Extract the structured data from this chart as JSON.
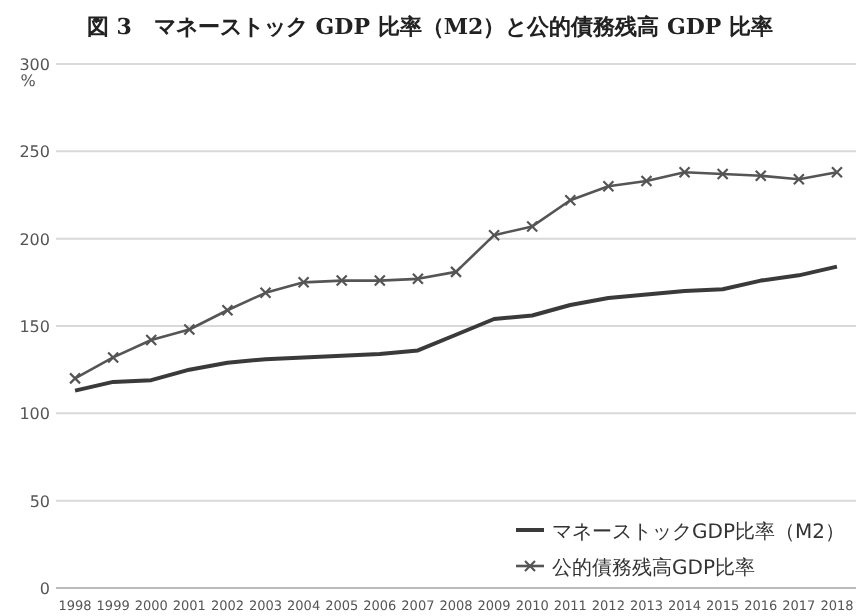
{
  "chart_data": {
    "type": "line",
    "title": "図 3　マネーストック GDP 比率（M2）と公的債務残高 GDP 比率",
    "ylabel": "%",
    "categories": [
      "1998",
      "1999",
      "2000",
      "2001",
      "2002",
      "2003",
      "2004",
      "2005",
      "2006",
      "2007",
      "2008",
      "2009",
      "2010",
      "2011",
      "2012",
      "2013",
      "2014",
      "2015",
      "2016",
      "2017",
      "2018"
    ],
    "series": [
      {
        "name": "マネーストックGDP比率（M2）",
        "color": "#3a3a3a",
        "marker": "none",
        "values": [
          113,
          118,
          119,
          125,
          129,
          131,
          132,
          133,
          134,
          136,
          145,
          154,
          156,
          162,
          166,
          168,
          170,
          171,
          176,
          179,
          184
        ]
      },
      {
        "name": "公的債務残高GDP比率",
        "color": "#555555",
        "marker": "cross",
        "values": [
          120,
          132,
          142,
          148,
          159,
          169,
          175,
          176,
          176,
          177,
          181,
          202,
          207,
          222,
          230,
          233,
          238,
          237,
          236,
          234,
          238
        ]
      }
    ],
    "ylim": [
      0,
      300
    ],
    "yticks": [
      0,
      50,
      100,
      150,
      200,
      250,
      300
    ],
    "grid": "y",
    "legend": "bottom right"
  }
}
